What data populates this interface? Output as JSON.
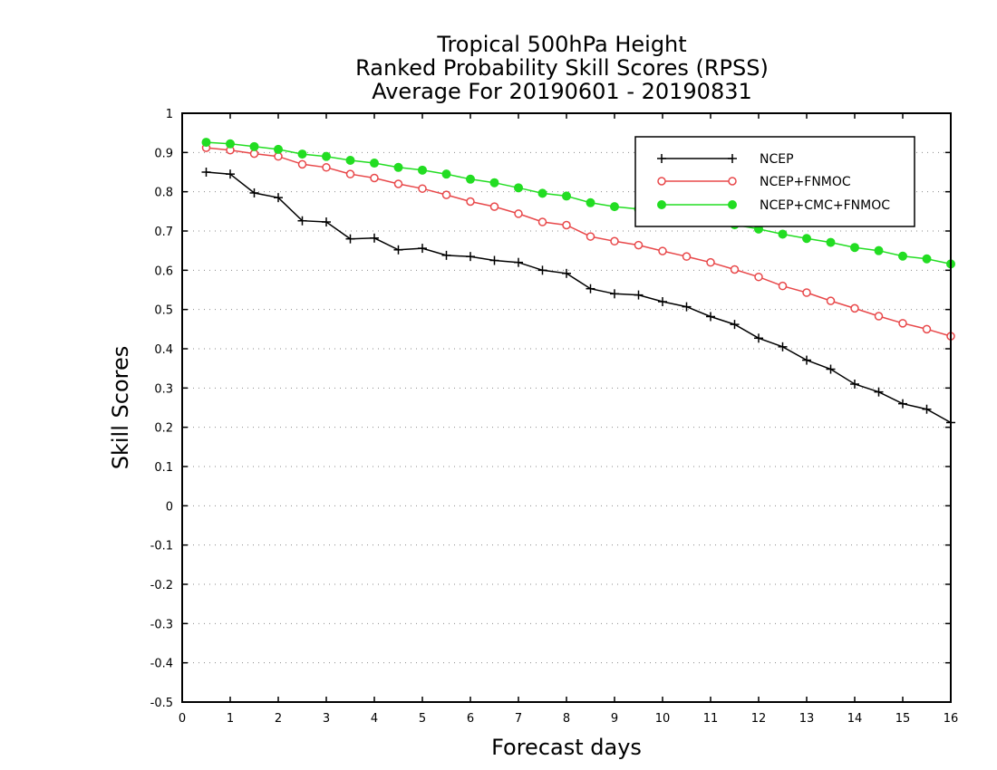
{
  "chart_data": {
    "type": "line",
    "title": [
      "Tropical 500hPa Height",
      "Ranked Probability Skill Scores (RPSS)",
      "Average For 20190601 - 20190831"
    ],
    "xlabel": "Forecast days",
    "ylabel": "Skill Scores",
    "xlim": [
      0,
      16
    ],
    "ylim": [
      -0.5,
      1
    ],
    "xticks": [
      0,
      1,
      2,
      3,
      4,
      5,
      6,
      7,
      8,
      9,
      10,
      11,
      12,
      13,
      14,
      15,
      16
    ],
    "yticks": [
      -0.5,
      -0.4,
      -0.3,
      -0.2,
      -0.1,
      0,
      0.1,
      0.2,
      0.3,
      0.4,
      0.5,
      0.6,
      0.7,
      0.8,
      0.9,
      1
    ],
    "ytick_labels": [
      "-0.5",
      "-0.4",
      "-0.3",
      "-0.2",
      "-0.1",
      "0",
      "0.1",
      "0.2",
      "0.3",
      "0.4",
      "0.5",
      "0.6",
      "0.7",
      "0.8",
      "0.9",
      "1"
    ],
    "grid": "horizontal dotted",
    "legend_position": "top-right",
    "x": [
      0.5,
      1,
      1.5,
      2,
      2.5,
      3,
      3.5,
      4,
      4.5,
      5,
      5.5,
      6,
      6.5,
      7,
      7.5,
      8,
      8.5,
      9,
      9.5,
      10,
      10.5,
      11,
      11.5,
      12,
      12.5,
      13,
      13.5,
      14,
      14.5,
      15,
      15.5,
      16
    ],
    "series": [
      {
        "name": "NCEP",
        "color": "#000000",
        "marker": "plus",
        "values": [
          0.85,
          0.845,
          0.797,
          0.785,
          0.726,
          0.723,
          0.68,
          0.682,
          0.652,
          0.656,
          0.638,
          0.635,
          0.625,
          0.62,
          0.6,
          0.592,
          0.553,
          0.54,
          0.537,
          0.52,
          0.507,
          0.482,
          0.462,
          0.427,
          0.405,
          0.371,
          0.348,
          0.31,
          0.29,
          0.26,
          0.246,
          0.212
        ]
      },
      {
        "name": "NCEP+FNMOC",
        "color": "#e8484a",
        "marker": "open-circle",
        "values": [
          0.912,
          0.906,
          0.897,
          0.89,
          0.87,
          0.862,
          0.845,
          0.835,
          0.82,
          0.808,
          0.792,
          0.775,
          0.762,
          0.744,
          0.723,
          0.715,
          0.686,
          0.674,
          0.664,
          0.649,
          0.635,
          0.62,
          0.602,
          0.583,
          0.56,
          0.543,
          0.522,
          0.503,
          0.483,
          0.465,
          0.45,
          0.432
        ]
      },
      {
        "name": "NCEP+CMC+FNMOC",
        "color": "#22dd22",
        "marker": "filled-circle",
        "values": [
          0.926,
          0.922,
          0.915,
          0.908,
          0.896,
          0.89,
          0.88,
          0.873,
          0.862,
          0.855,
          0.845,
          0.832,
          0.823,
          0.81,
          0.796,
          0.789,
          0.772,
          0.762,
          0.756,
          0.747,
          0.735,
          0.727,
          0.716,
          0.705,
          0.692,
          0.681,
          0.671,
          0.658,
          0.65,
          0.636,
          0.629,
          0.616
        ]
      }
    ]
  }
}
